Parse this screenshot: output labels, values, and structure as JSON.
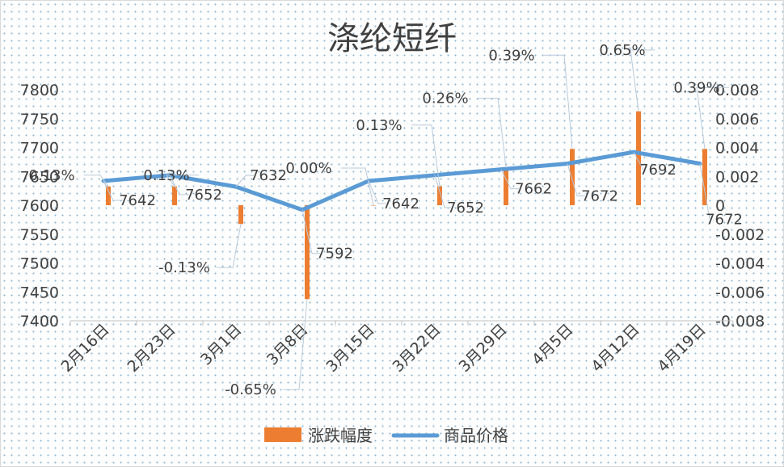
{
  "chart_data": {
    "type": "bar+line",
    "title": "涤纶短纤",
    "categories": [
      "2月16日",
      "2月23日",
      "3月1日",
      "3月8日",
      "3月15日",
      "3月22日",
      "3月29日",
      "4月5日",
      "4月12日",
      "4月19日"
    ],
    "series": [
      {
        "name": "涨跌幅度",
        "type": "bar",
        "axis": "secondary",
        "values": [
          0.0013,
          0.0013,
          -0.0013,
          -0.0065,
          0.0,
          0.0013,
          0.0026,
          0.0039,
          0.0065,
          0.0039
        ],
        "labels": [
          "0.13%",
          "0.13%",
          "-0.13%",
          "-0.65%",
          "0.00%",
          "0.13%",
          "0.26%",
          "0.39%",
          "0.65%",
          "0.39%"
        ],
        "color": "#ed7d31"
      },
      {
        "name": "商品价格",
        "type": "line",
        "axis": "primary",
        "values": [
          7642,
          7652,
          7632,
          7592,
          7642,
          7652,
          7662,
          7672,
          7692,
          7672
        ],
        "labels": [
          "7642",
          "7652",
          "7632",
          "7592",
          "7642",
          "7652",
          "7662",
          "7672",
          "7692",
          "7672"
        ],
        "color": "#5b9bd5"
      }
    ],
    "y_primary": {
      "ylim": [
        7400,
        7800
      ],
      "ticks": [
        "7400",
        "7450",
        "7500",
        "7550",
        "7600",
        "7650",
        "7700",
        "7750",
        "7800"
      ]
    },
    "y_secondary": {
      "ylim": [
        -0.008,
        0.008
      ],
      "ticks": [
        "-0.008",
        "-0.006",
        "-0.004",
        "-0.002",
        "0",
        "0.002",
        "0.004",
        "0.006",
        "0.008"
      ]
    },
    "legend_position": "bottom",
    "grid": false
  }
}
